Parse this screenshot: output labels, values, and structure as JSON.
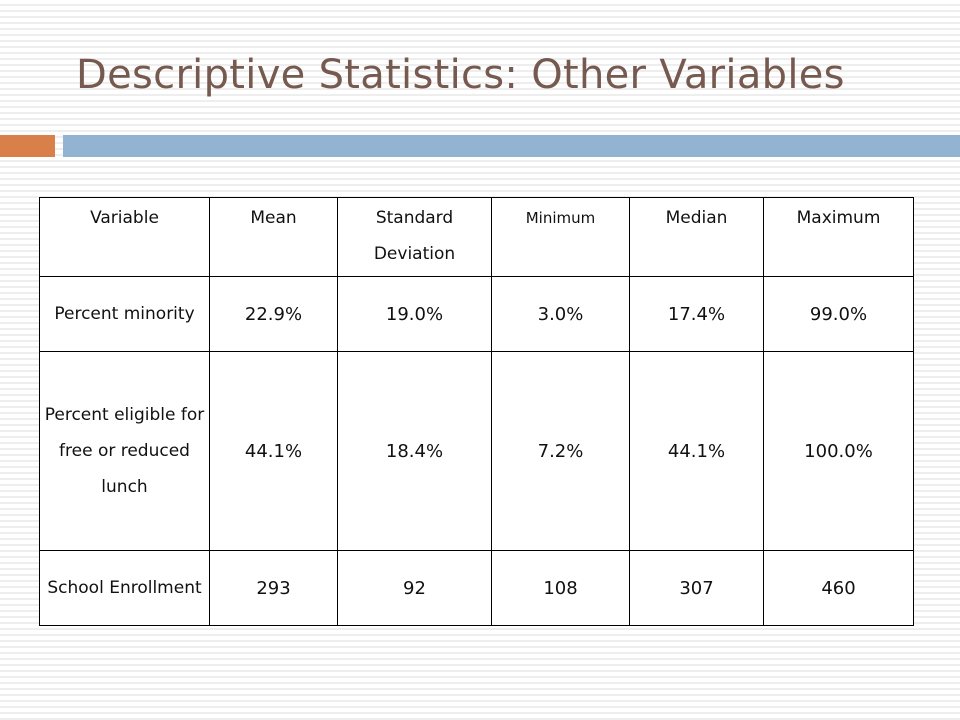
{
  "slide": {
    "title": "Descriptive Statistics: Other Variables"
  },
  "colors": {
    "title": "#765a50",
    "accent_orange": "#d9804a",
    "accent_blue": "#92b4d2"
  },
  "table": {
    "headers": [
      "Variable",
      "Mean",
      "Standard Deviation",
      "Minimum",
      "Median",
      "Maximum"
    ],
    "rows": [
      {
        "variable": "Percent minority",
        "mean": "22.9%",
        "sd": "19.0%",
        "min": "3.0%",
        "median": "17.4%",
        "max": "99.0%"
      },
      {
        "variable": "Percent eligible for free or reduced lunch",
        "mean": "44.1%",
        "sd": "18.4%",
        "min": "7.2%",
        "median": "44.1%",
        "max": "100.0%"
      },
      {
        "variable": "School Enrollment",
        "mean": "293",
        "sd": "92",
        "min": "108",
        "median": "307",
        "max": "460"
      }
    ]
  }
}
